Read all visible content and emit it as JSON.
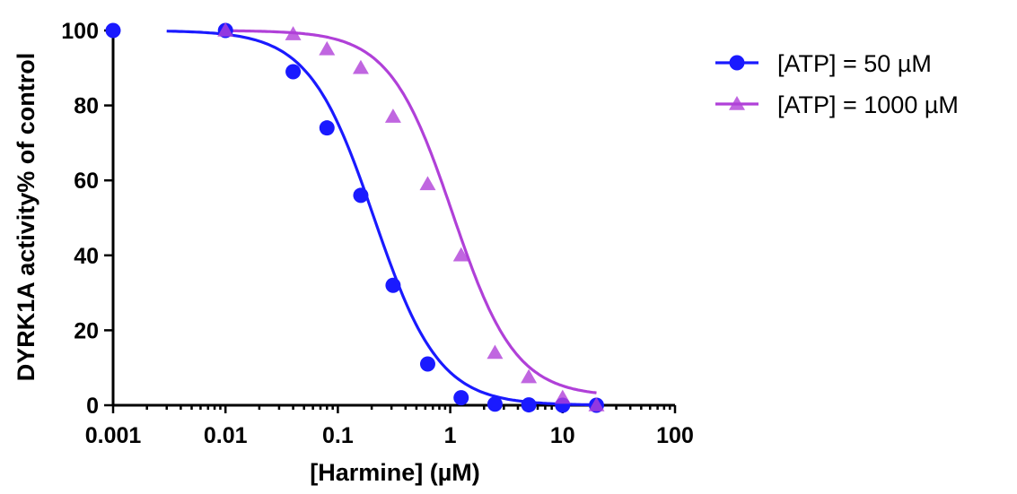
{
  "chart_data": {
    "type": "scatter",
    "title": "",
    "xlabel": "[Harmine] (µM)",
    "ylabel": "DYRK1A activity% of control",
    "xscale": "log",
    "xlim": [
      0.001,
      100
    ],
    "ylim": [
      0,
      100
    ],
    "x_tick_labels": [
      "0.001",
      "0.01",
      "0.1",
      "1",
      "10",
      "100"
    ],
    "y_tick_labels": [
      "0",
      "20",
      "40",
      "60",
      "80",
      "100"
    ],
    "grid": false,
    "legend_position": "top-right",
    "series": [
      {
        "name": "[ATP] = 50 µM",
        "color": "#1a1aff",
        "marker": "circle",
        "x": [
          0.001,
          0.01,
          0.04,
          0.08,
          0.16,
          0.31,
          0.63,
          1.25,
          2.5,
          5,
          10,
          20
        ],
        "y": [
          100,
          100,
          89,
          74,
          56,
          32,
          11,
          2,
          0.3,
          0.1,
          0,
          0
        ],
        "fit": {
          "top": 100,
          "bottom": 0,
          "ic50": 0.21,
          "hill": 1.5
        }
      },
      {
        "name": "[ATP] = 1000 µM",
        "color": "#b040d8",
        "marker": "triangle",
        "x": [
          0.01,
          0.04,
          0.08,
          0.16,
          0.31,
          0.63,
          1.25,
          2.5,
          5,
          10,
          20
        ],
        "y": [
          100,
          99,
          95,
          90,
          77,
          59,
          40,
          14,
          7.5,
          2,
          0
        ],
        "fit": {
          "top": 100,
          "bottom": 2.3,
          "ic50": 1.05,
          "hill": 1.55
        }
      }
    ]
  }
}
